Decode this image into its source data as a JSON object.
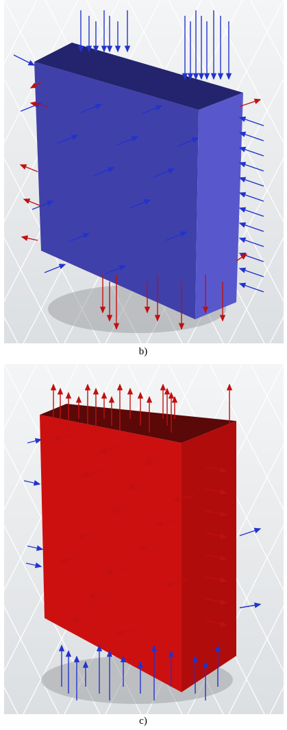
{
  "figures": [
    {
      "caption": "b)"
    },
    {
      "caption": "c)"
    }
  ]
}
